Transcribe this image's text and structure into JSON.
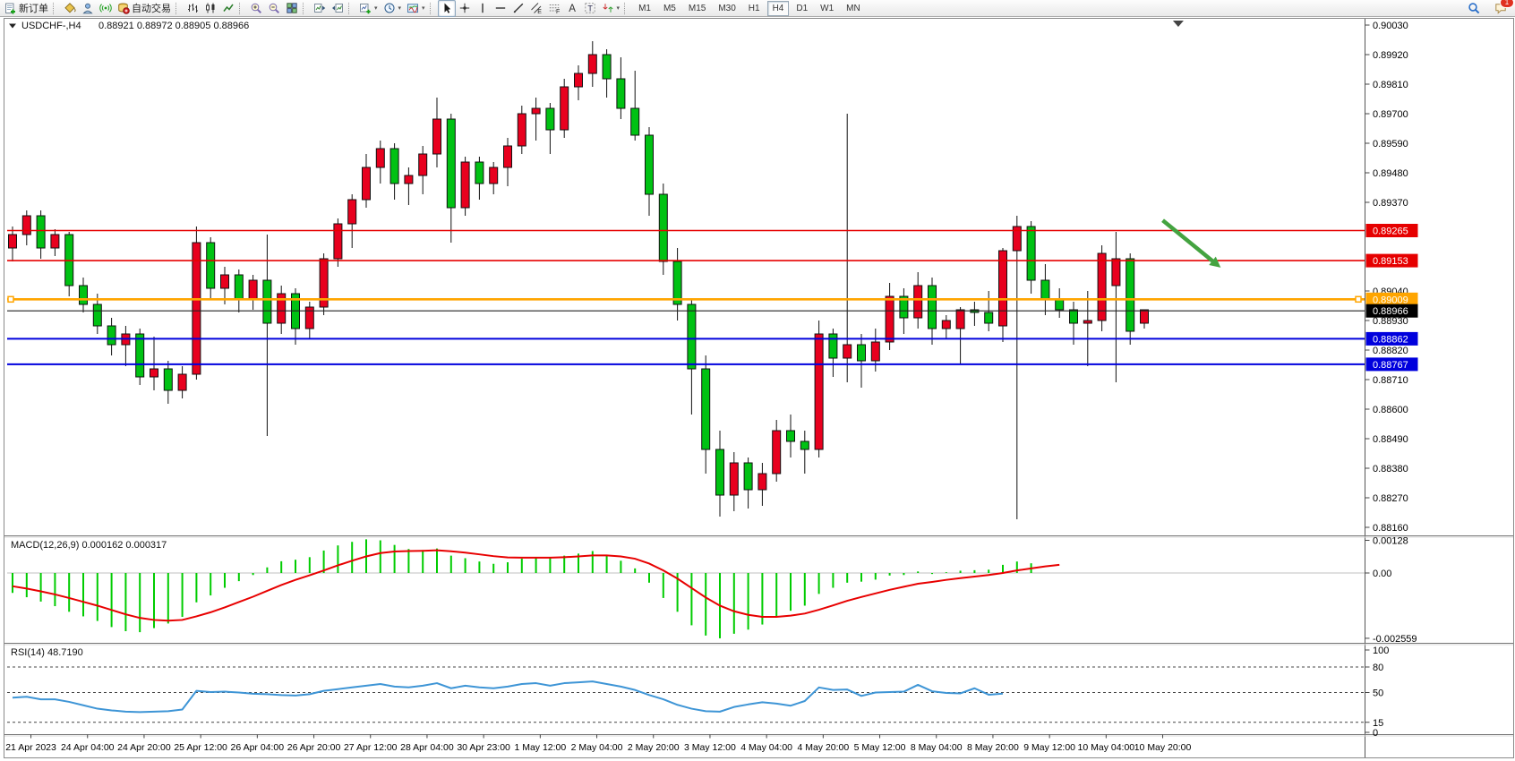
{
  "toolbar": {
    "groups": [
      {
        "items": [
          {
            "name": "new-order-button",
            "icon": "new-order-icon",
            "label": "新订单"
          }
        ]
      },
      {
        "items": [
          {
            "name": "styles-button",
            "icon": "paint-bucket-icon"
          },
          {
            "name": "profile-button",
            "icon": "profile-icon"
          },
          {
            "name": "signal-button",
            "icon": "signal-icon"
          },
          {
            "name": "auto-trading-button",
            "icon": "autotrade-icon",
            "label": "自动交易"
          }
        ]
      },
      {
        "items": [
          {
            "name": "bar-chart-button",
            "icon": "bar-chart-icon"
          },
          {
            "name": "candlestick-chart-button",
            "icon": "candlestick-icon"
          },
          {
            "name": "line-chart-button",
            "icon": "line-chart-icon"
          }
        ]
      },
      {
        "items": [
          {
            "name": "zoom-in-button",
            "icon": "zoom-in-icon"
          },
          {
            "name": "zoom-out-button",
            "icon": "zoom-out-icon"
          },
          {
            "name": "tile-windows-button",
            "icon": "tile-windows-icon"
          }
        ]
      },
      {
        "items": [
          {
            "name": "scroll-to-end-button",
            "icon": "scroll-to-end-icon"
          },
          {
            "name": "chart-shift-button",
            "icon": "chart-shift-icon"
          }
        ]
      },
      {
        "items": [
          {
            "name": "new-chart-button",
            "icon": "new-chart-icon",
            "dropdown": true
          },
          {
            "name": "periods-button",
            "icon": "clock-icon",
            "dropdown": true
          },
          {
            "name": "templates-button",
            "icon": "template-icon",
            "dropdown": true
          }
        ]
      },
      {
        "items": [
          {
            "name": "cursor-button",
            "icon": "cursor-icon",
            "active": true
          },
          {
            "name": "crosshair-button",
            "icon": "crosshair-icon"
          },
          {
            "name": "vertical-line-button",
            "icon": "vertical-line-icon"
          },
          {
            "name": "horizontal-line-button",
            "icon": "horizontal-line-icon"
          },
          {
            "name": "trendline-button",
            "icon": "trendline-icon"
          },
          {
            "name": "equidistant-channel-button",
            "icon": "equidistant-channel-icon"
          },
          {
            "name": "fibonacci-button",
            "icon": "fibonacci-icon"
          },
          {
            "name": "text-button",
            "icon": "text-icon"
          },
          {
            "name": "text-label-button",
            "icon": "text-label-icon"
          },
          {
            "name": "arrows-button",
            "icon": "arrows-icon",
            "dropdown": true
          }
        ]
      }
    ],
    "timeframes": [
      {
        "label": "M1"
      },
      {
        "label": "M5"
      },
      {
        "label": "M15"
      },
      {
        "label": "M30"
      },
      {
        "label": "H1"
      },
      {
        "label": "H4",
        "active": true
      },
      {
        "label": "D1"
      },
      {
        "label": "W1"
      },
      {
        "label": "MN"
      }
    ],
    "right": {
      "search_icon": "search-icon",
      "chat_icon": "chat-icon",
      "chat_badge": "1"
    }
  },
  "window": {
    "title_symbol": "USDCHF-,H4",
    "title_quotes": "0.88921 0.88972 0.88905 0.88966"
  },
  "chart_data": {
    "type": "candlestick",
    "symbol": "USDCHF-",
    "timeframe": "H4",
    "current_bar": {
      "open": 0.88921,
      "high": 0.88972,
      "low": 0.88905,
      "close": 0.88966
    },
    "price_axis": {
      "max": 0.9003,
      "min": 0.8816,
      "labels": [
        "0.90030",
        "0.89920",
        "0.89810",
        "0.89700",
        "0.89590",
        "0.89480",
        "0.89370",
        "0.89040",
        "0.88930",
        "0.88820",
        "0.88710",
        "0.88600",
        "0.88490",
        "0.88380",
        "0.88270",
        "0.88160"
      ]
    },
    "levels": [
      {
        "price": 0.89265,
        "badge": "0.89265",
        "color": "#E60000",
        "width": 1.6
      },
      {
        "price": 0.89153,
        "badge": "0.89153",
        "color": "#E60000",
        "width": 1.6
      },
      {
        "price": 0.89009,
        "badge": "0.89009",
        "color": "#FFA500",
        "width": 2.6,
        "handles": true
      },
      {
        "price": 0.88966,
        "badge": "0.88966",
        "color": "#222222",
        "width": 1.1,
        "badge_bg": "#000000"
      },
      {
        "price": 0.88862,
        "badge": "0.88862",
        "color": "#0000DD",
        "width": 2.0
      },
      {
        "price": 0.88767,
        "badge": "0.88767",
        "color": "#0000DD",
        "width": 2.0
      }
    ],
    "candles_unit": "price x 10000, [open,high,low,close]",
    "candles": [
      [
        8920,
        8928,
        8915,
        8925
      ],
      [
        8925,
        8934,
        8921,
        8932
      ],
      [
        8932,
        8934,
        8916,
        8920
      ],
      [
        8920,
        8927,
        8917,
        8925
      ],
      [
        8925,
        8926,
        8902,
        8906
      ],
      [
        8906,
        8909,
        8896,
        8899
      ],
      [
        8899,
        8903,
        8888,
        8891
      ],
      [
        8891,
        8894,
        8880,
        8884
      ],
      [
        8884,
        8891,
        8876,
        8888
      ],
      [
        8888,
        8890,
        8869,
        8872
      ],
      [
        8872,
        8887,
        8867,
        8875
      ],
      [
        8875,
        8878,
        8862,
        8867
      ],
      [
        8867,
        8876,
        8864,
        8873
      ],
      [
        8873,
        8928,
        8871,
        8922
      ],
      [
        8922,
        8924,
        8901,
        8905
      ],
      [
        8905,
        8913,
        8899,
        8910
      ],
      [
        8910,
        8912,
        8896,
        8901
      ],
      [
        8901,
        8910,
        8897,
        8908
      ],
      [
        8908,
        8925,
        8850,
        8892
      ],
      [
        8892,
        8906,
        8888,
        8903
      ],
      [
        8903,
        8905,
        8884,
        8890
      ],
      [
        8890,
        8900,
        8886,
        8898
      ],
      [
        8898,
        8918,
        8895,
        8916
      ],
      [
        8916,
        8931,
        8913,
        8929
      ],
      [
        8929,
        8940,
        8920,
        8938
      ],
      [
        8938,
        8955,
        8935,
        8950
      ],
      [
        8950,
        8960,
        8944,
        8957
      ],
      [
        8957,
        8959,
        8938,
        8944
      ],
      [
        8944,
        8950,
        8936,
        8947
      ],
      [
        8947,
        8958,
        8940,
        8955
      ],
      [
        8955,
        8976,
        8950,
        8968
      ],
      [
        8968,
        8970,
        8922,
        8935
      ],
      [
        8935,
        8954,
        8932,
        8952
      ],
      [
        8952,
        8954,
        8938,
        8944
      ],
      [
        8944,
        8952,
        8940,
        8950
      ],
      [
        8950,
        8961,
        8943,
        8958
      ],
      [
        8958,
        8973,
        8955,
        8970
      ],
      [
        8970,
        8976,
        8960,
        8972
      ],
      [
        8972,
        8974,
        8955,
        8964
      ],
      [
        8964,
        8983,
        8961,
        8980
      ],
      [
        8980,
        8988,
        8975,
        8985
      ],
      [
        8985,
        8997,
        8980,
        8992
      ],
      [
        8992,
        8994,
        8976,
        8983
      ],
      [
        8983,
        8991,
        8968,
        8972
      ],
      [
        8972,
        8986,
        8960,
        8962
      ],
      [
        8962,
        8965,
        8932,
        8940
      ],
      [
        8940,
        8944,
        8910,
        8915
      ],
      [
        8915,
        8920,
        8893,
        8899
      ],
      [
        8899,
        8901,
        8858,
        8875
      ],
      [
        8875,
        8880,
        8836,
        8845
      ],
      [
        8845,
        8852,
        8820,
        8828
      ],
      [
        8828,
        8844,
        8822,
        8840
      ],
      [
        8840,
        8842,
        8823,
        8830
      ],
      [
        8830,
        8840,
        8824,
        8836
      ],
      [
        8836,
        8856,
        8833,
        8852
      ],
      [
        8852,
        8858,
        8842,
        8848
      ],
      [
        8848,
        8852,
        8836,
        8845
      ],
      [
        8845,
        8893,
        8842,
        8888
      ],
      [
        8888,
        8890,
        8872,
        8879
      ],
      [
        8879,
        8970,
        8870,
        8884
      ],
      [
        8884,
        8888,
        8868,
        8878
      ],
      [
        8878,
        8890,
        8874,
        8885
      ],
      [
        8885,
        8907,
        8882,
        8902
      ],
      [
        8902,
        8905,
        8888,
        8894
      ],
      [
        8894,
        8911,
        8890,
        8906
      ],
      [
        8906,
        8909,
        8884,
        8890
      ],
      [
        8890,
        8895,
        8886,
        8893
      ],
      [
        8890,
        8898,
        8877,
        8897
      ],
      [
        8897,
        8900,
        8891,
        8896
      ],
      [
        8896,
        8904,
        8889,
        8892
      ],
      [
        8891,
        8920,
        8885,
        8919
      ],
      [
        8919,
        8932,
        8819,
        8928
      ],
      [
        8928,
        8930,
        8903,
        8908
      ],
      [
        8908,
        8914,
        8895,
        8901
      ],
      [
        8901,
        8905,
        8894,
        8897
      ],
      [
        8897,
        8900,
        8884,
        8892
      ],
      [
        8892,
        8904,
        8876,
        8893
      ],
      [
        8893,
        8921,
        8889,
        8918
      ],
      [
        8906,
        8926,
        8870,
        8916
      ],
      [
        8916,
        8918,
        8884,
        8889
      ],
      [
        8892,
        8897,
        8890,
        8897
      ]
    ],
    "time_labels": [
      {
        "text": "21 Apr 2023",
        "slot": 1.3
      },
      {
        "text": "24 Apr 04:00",
        "slot": 5.3
      },
      {
        "text": "24 Apr 20:00",
        "slot": 9.3
      },
      {
        "text": "25 Apr 12:00",
        "slot": 13.3
      },
      {
        "text": "26 Apr 04:00",
        "slot": 17.3
      },
      {
        "text": "26 Apr 20:00",
        "slot": 21.3
      },
      {
        "text": "27 Apr 12:00",
        "slot": 25.3
      },
      {
        "text": "28 Apr 04:00",
        "slot": 29.3
      },
      {
        "text": "30 Apr 23:00",
        "slot": 33.3
      },
      {
        "text": "1 May 12:00",
        "slot": 37.3
      },
      {
        "text": "2 May 04:00",
        "slot": 41.3
      },
      {
        "text": "2 May 20:00",
        "slot": 45.3
      },
      {
        "text": "3 May 12:00",
        "slot": 49.3
      },
      {
        "text": "4 May 04:00",
        "slot": 53.3
      },
      {
        "text": "4 May 20:00",
        "slot": 57.3
      },
      {
        "text": "5 May 12:00",
        "slot": 61.3
      },
      {
        "text": "8 May 04:00",
        "slot": 65.3
      },
      {
        "text": "8 May 20:00",
        "slot": 69.3
      },
      {
        "text": "9 May 12:00",
        "slot": 73.3
      },
      {
        "text": "10 May 04:00",
        "slot": 77.3
      },
      {
        "text": "10 May 20:00",
        "slot": 81.3
      }
    ],
    "macd": {
      "label": "MACD(12,26,9) 0.000162 0.000317",
      "params": "12,26,9",
      "value": 0.000162,
      "signal_value": 0.000317,
      "axis_labels": [
        {
          "t": "0.00128",
          "v": 0.00128
        },
        {
          "t": "0.00",
          "v": 0
        },
        {
          "t": "-0.002559",
          "v": -0.002559
        }
      ],
      "histogram": [
        -0.00078,
        -0.00095,
        -0.00112,
        -0.0013,
        -0.00152,
        -0.0017,
        -0.00188,
        -0.00212,
        -0.00228,
        -0.00232,
        -0.00216,
        -0.00198,
        -0.00172,
        -0.00115,
        -0.00088,
        -0.00058,
        -0.00032,
        -8e-05,
        0.00022,
        0.00046,
        0.00052,
        0.00062,
        0.00088,
        0.00108,
        0.00122,
        0.00132,
        0.00128,
        0.0011,
        0.00094,
        0.0009,
        0.00096,
        0.00068,
        0.00058,
        0.00045,
        0.00036,
        0.00042,
        0.00056,
        0.00062,
        0.00058,
        0.00068,
        0.00076,
        0.00086,
        0.0007,
        0.00048,
        0.00018,
        -0.00038,
        -0.00098,
        -0.00152,
        -0.00205,
        -0.00245,
        -0.00256,
        -0.00238,
        -0.00222,
        -0.00202,
        -0.00172,
        -0.00148,
        -0.00128,
        -0.00082,
        -0.00058,
        -0.00038,
        -0.00034,
        -0.00026,
        -0.0001,
        -8e-05,
        6e-05,
        -4e-05,
        3e-05,
        9e-05,
        0.00011,
        0.00013,
        0.00032,
        0.00045,
        0.00038,
        null,
        null,
        null,
        null,
        null,
        null,
        null,
        null
      ],
      "signal": [
        -0.00052,
        -0.00061,
        -0.00072,
        -0.00084,
        -0.00098,
        -0.00113,
        -0.00128,
        -0.00145,
        -0.00162,
        -0.00176,
        -0.00184,
        -0.00187,
        -0.00184,
        -0.0017,
        -0.00154,
        -0.00135,
        -0.00114,
        -0.00093,
        -0.0007,
        -0.00047,
        -0.00027,
        -9e-05,
        0.0001,
        0.0003,
        0.00048,
        0.00065,
        0.00078,
        0.00084,
        0.00086,
        0.00087,
        0.00089,
        0.00085,
        0.0008,
        0.00073,
        0.00066,
        0.00061,
        0.0006,
        0.0006,
        0.0006,
        0.00062,
        0.00065,
        0.00069,
        0.00069,
        0.00065,
        0.00056,
        0.00037,
        0.0001,
        -0.00022,
        -0.00059,
        -0.00096,
        -0.00128,
        -0.0015,
        -0.00164,
        -0.00172,
        -0.00172,
        -0.00167,
        -0.00159,
        -0.00144,
        -0.00127,
        -0.00109,
        -0.00094,
        -0.0008,
        -0.00066,
        -0.00054,
        -0.00042,
        -0.00035,
        -0.00027,
        -0.0002,
        -0.00014,
        -8e-05,
        0.0,
        0.0001,
        0.00018,
        0.00026,
        0.00032,
        null,
        null,
        null,
        null,
        null,
        null
      ]
    },
    "rsi": {
      "label": "RSI(14) 48.7190",
      "params": "14",
      "value": 48.719,
      "axis_labels": [
        {
          "t": "100",
          "v": 100
        },
        {
          "t": "80",
          "v": 80
        },
        {
          "t": "50",
          "v": 50
        },
        {
          "t": "15",
          "v": 15
        },
        {
          "t": "0",
          "v": 0
        }
      ],
      "dashed_levels": [
        80,
        50,
        15
      ],
      "series": [
        44,
        45,
        42,
        42,
        39,
        35,
        31,
        29,
        27.5,
        27,
        27.5,
        28,
        30,
        52,
        50.5,
        51,
        50,
        48.5,
        48,
        47,
        46.5,
        48,
        52,
        54,
        56,
        58,
        60,
        57,
        56,
        58,
        61,
        55,
        58,
        56,
        55,
        57,
        60,
        61,
        58,
        61,
        62,
        63,
        60,
        57,
        53,
        47,
        42,
        35.5,
        31,
        28,
        27.5,
        33,
        36,
        38.5,
        37,
        34.5,
        40,
        56,
        53,
        53.5,
        46,
        50,
        50.5,
        51,
        59,
        51.5,
        49.5,
        49,
        55,
        47.4,
        48.7,
        null,
        null,
        null,
        null,
        null,
        null,
        null,
        null,
        null
      ]
    },
    "annotations": {
      "arrow": {
        "from_bar": 81.3,
        "from_price": 0.89303,
        "to_bar": 85.4,
        "to_price": 0.89127
      },
      "shift_marker_bar": 82.4
    },
    "colors": {
      "bull": "#E8001E",
      "bear": "#00C213",
      "outline": "#111111",
      "wick": "#111111",
      "macd_hist": "#00CC00",
      "macd_signal": "#E80000",
      "rsi_line": "#3E95D6",
      "arrow": "#44A340",
      "axis_text": "#000000"
    }
  }
}
